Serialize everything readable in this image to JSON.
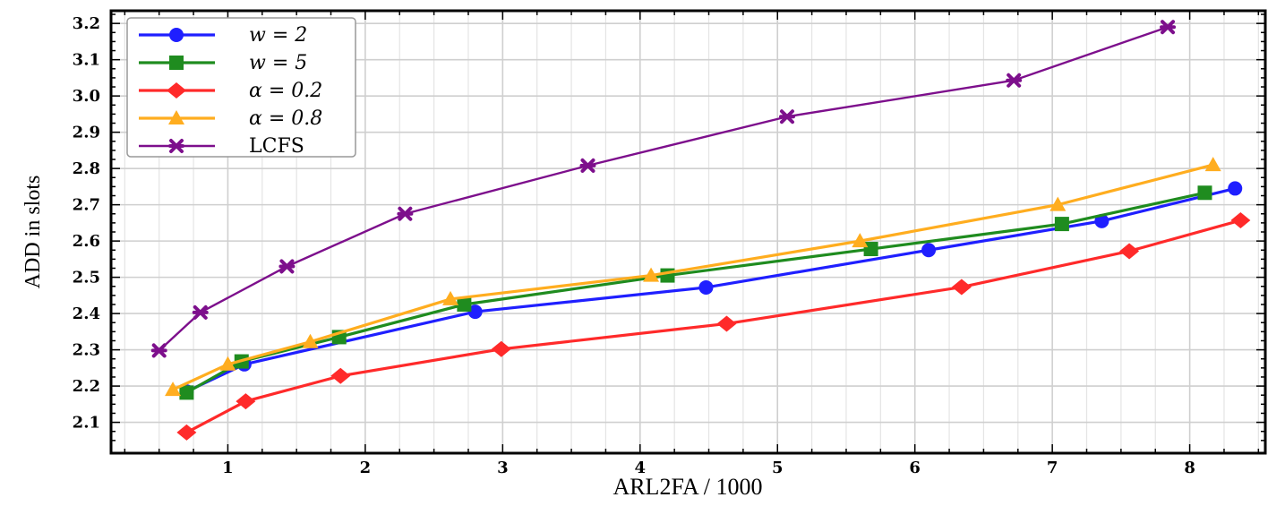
{
  "chart_data": {
    "type": "line",
    "title": "",
    "xlabel": "ARL2FA / 1000",
    "ylabel": "ADD in slots",
    "xlim": [
      0.15,
      8.55
    ],
    "ylim": [
      2.015,
      3.235
    ],
    "xticks": [
      1,
      2,
      3,
      4,
      5,
      6,
      7,
      8
    ],
    "yticks": [
      2.1,
      2.2,
      2.3,
      2.4,
      2.5,
      2.6,
      2.7,
      2.8,
      2.9,
      3.0,
      3.1,
      3.2
    ],
    "ytick_labels": [
      "2.1",
      "2.2",
      "2.3",
      "2.4",
      "2.5",
      "2.6",
      "2.7",
      "2.8",
      "2.9",
      "3.0",
      "3.1",
      "3.2"
    ],
    "grid": true,
    "legend_position": "top-left",
    "series": [
      {
        "name": "w = 2",
        "color": "#1f1fff",
        "marker": "circle",
        "x": [
          0.7,
          1.12,
          2.8,
          4.48,
          6.1,
          7.36,
          8.33
        ],
        "y": [
          2.185,
          2.26,
          2.405,
          2.472,
          2.575,
          2.655,
          2.745
        ]
      },
      {
        "name": "w = 5",
        "color": "#1f8c1f",
        "marker": "square",
        "x": [
          0.7,
          1.1,
          1.81,
          2.72,
          4.2,
          5.68,
          7.07,
          8.11
        ],
        "y": [
          2.182,
          2.268,
          2.335,
          2.425,
          2.505,
          2.578,
          2.647,
          2.733
        ]
      },
      {
        "name": "α = 0.2",
        "color": "#ff2a2a",
        "marker": "diamond",
        "x": [
          0.7,
          1.13,
          1.82,
          2.99,
          4.63,
          6.34,
          7.56,
          8.37
        ],
        "y": [
          2.072,
          2.158,
          2.228,
          2.302,
          2.372,
          2.473,
          2.572,
          2.657
        ]
      },
      {
        "name": "α = 0.8",
        "color": "#ffad1f",
        "marker": "triangle",
        "x": [
          0.6,
          1.0,
          1.6,
          2.62,
          4.08,
          5.6,
          7.04,
          8.17
        ],
        "y": [
          2.19,
          2.26,
          2.322,
          2.44,
          2.505,
          2.6,
          2.7,
          2.81
        ]
      },
      {
        "name": "LCFS",
        "color": "#7d0f8c",
        "marker": "cross",
        "x": [
          0.5,
          0.8,
          1.43,
          2.29,
          3.62,
          5.07,
          6.72,
          7.84
        ],
        "y": [
          2.298,
          2.403,
          2.53,
          2.675,
          2.808,
          2.943,
          3.043,
          3.19
        ]
      }
    ]
  }
}
